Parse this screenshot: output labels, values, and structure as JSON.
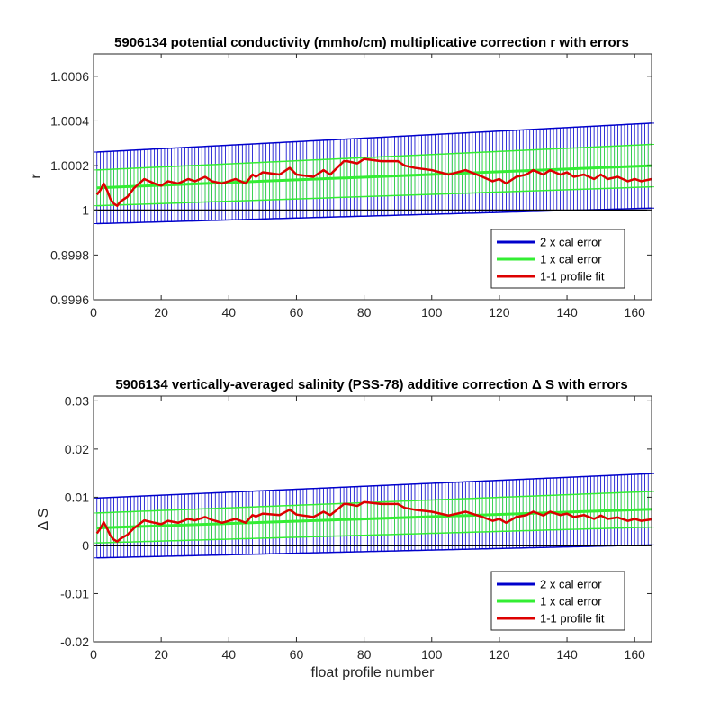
{
  "chart_data": [
    {
      "type": "line",
      "title": "5906134 potential conductivity (mmho/cm) multiplicative correction r with errors",
      "xlabel": "",
      "ylabel": "r",
      "xlim": [
        0,
        165
      ],
      "ylim": [
        0.9996,
        1.0007
      ],
      "xticks": [
        0,
        20,
        40,
        60,
        80,
        100,
        120,
        140,
        160
      ],
      "xtick_labels": [
        "0",
        "20",
        "40",
        "60",
        "80",
        "100",
        "120",
        "140",
        "160"
      ],
      "yticks": [
        0.9996,
        0.9998,
        1,
        1.0002,
        1.0004,
        1.0006
      ],
      "ytick_labels": [
        "0.9996",
        "0.9998",
        "1",
        "1.0002",
        "1.0004",
        "1.0006"
      ],
      "reference_line": 1,
      "fit": {
        "start": 1.0001,
        "end": 1.0002
      },
      "error1": {
        "start": 8e-05,
        "end": 9.5e-05
      },
      "error2": {
        "start": 0.00016,
        "end": 0.00019
      },
      "legend": {
        "placement": "bottom-right",
        "entries": [
          "2 x cal error",
          "1 x cal error",
          "1-1 profile fit"
        ]
      },
      "series": [
        {
          "name": "2 x cal error",
          "color": "#0000cc"
        },
        {
          "name": "1 x cal error",
          "color": "#33ee33"
        },
        {
          "name": "1-1 profile fit",
          "color": "#dd0000",
          "x": [
            1,
            2,
            3,
            4,
            5,
            6,
            7,
            8,
            10,
            12,
            15,
            18,
            20,
            22,
            25,
            28,
            30,
            33,
            35,
            38,
            40,
            42,
            45,
            47,
            48,
            50,
            55,
            58,
            60,
            65,
            68,
            70,
            72,
            74,
            75,
            78,
            80,
            85,
            90,
            92,
            95,
            100,
            105,
            110,
            115,
            118,
            120,
            122,
            125,
            128,
            130,
            133,
            135,
            138,
            140,
            142,
            145,
            148,
            150,
            152,
            155,
            158,
            160,
            162,
            165
          ],
          "values": [
            1.00007,
            1.00009,
            1.00012,
            1.00009,
            1.00005,
            1.00003,
            1.00002,
            1.00004,
            1.00006,
            1.0001,
            1.00014,
            1.00012,
            1.00011,
            1.00013,
            1.00012,
            1.00014,
            1.00013,
            1.00015,
            1.00013,
            1.00012,
            1.00013,
            1.00014,
            1.00012,
            1.00016,
            1.00015,
            1.00017,
            1.00016,
            1.00019,
            1.00016,
            1.00015,
            1.00018,
            1.00016,
            1.00019,
            1.00022,
            1.00022,
            1.00021,
            1.00023,
            1.00022,
            1.00022,
            1.0002,
            1.00019,
            1.00018,
            1.00016,
            1.00018,
            1.00015,
            1.00013,
            1.00014,
            1.00012,
            1.00015,
            1.00016,
            1.00018,
            1.00016,
            1.00018,
            1.00016,
            1.00017,
            1.00015,
            1.00016,
            1.00014,
            1.00016,
            1.00014,
            1.00015,
            1.00013,
            1.00014,
            1.00013,
            1.00014
          ]
        }
      ]
    },
    {
      "type": "line",
      "title": "5906134 vertically-averaged salinity (PSS-78) additive correction Δ S with errors",
      "xlabel": "float profile number",
      "ylabel": "Δ S",
      "xlim": [
        0,
        165
      ],
      "ylim": [
        -0.02,
        0.031
      ],
      "xticks": [
        0,
        20,
        40,
        60,
        80,
        100,
        120,
        140,
        160
      ],
      "xtick_labels": [
        "0",
        "20",
        "40",
        "60",
        "80",
        "100",
        "120",
        "140",
        "160"
      ],
      "yticks": [
        -0.02,
        -0.01,
        0,
        0.01,
        0.02,
        0.03
      ],
      "ytick_labels": [
        "-0.02",
        "-0.01",
        "0",
        "0.01",
        "0.02",
        "0.03"
      ],
      "reference_line": 0,
      "fit": {
        "start": 0.0036,
        "end": 0.0075
      },
      "error1": {
        "start": 0.0031,
        "end": 0.0037
      },
      "error2": {
        "start": 0.0062,
        "end": 0.0074
      },
      "legend": {
        "placement": "bottom-right",
        "entries": [
          "2 x cal error",
          "1 x cal error",
          "1-1 profile fit"
        ]
      },
      "series": [
        {
          "name": "2 x cal error",
          "color": "#0000cc"
        },
        {
          "name": "1 x cal error",
          "color": "#33ee33"
        },
        {
          "name": "1-1 profile fit",
          "color": "#dd0000",
          "x": [
            1,
            2,
            3,
            4,
            5,
            6,
            7,
            8,
            10,
            12,
            15,
            18,
            20,
            22,
            25,
            28,
            30,
            33,
            35,
            38,
            40,
            42,
            45,
            47,
            48,
            50,
            55,
            58,
            60,
            65,
            68,
            70,
            72,
            74,
            75,
            78,
            80,
            85,
            90,
            92,
            95,
            100,
            105,
            110,
            115,
            118,
            120,
            122,
            125,
            128,
            130,
            133,
            135,
            138,
            140,
            142,
            145,
            148,
            150,
            152,
            155,
            158,
            160,
            162,
            165
          ],
          "values": [
            0.0025,
            0.0035,
            0.0048,
            0.0035,
            0.002,
            0.0012,
            0.0008,
            0.0014,
            0.0022,
            0.0036,
            0.0052,
            0.0047,
            0.0044,
            0.0051,
            0.0047,
            0.0055,
            0.0052,
            0.0059,
            0.0053,
            0.0047,
            0.0051,
            0.0055,
            0.0047,
            0.0063,
            0.006,
            0.0066,
            0.0063,
            0.0074,
            0.0064,
            0.0059,
            0.007,
            0.0063,
            0.0074,
            0.0086,
            0.0086,
            0.0082,
            0.009,
            0.0086,
            0.0086,
            0.0078,
            0.0074,
            0.007,
            0.0062,
            0.007,
            0.0059,
            0.0051,
            0.0055,
            0.0047,
            0.0059,
            0.0063,
            0.007,
            0.0062,
            0.007,
            0.0063,
            0.0066,
            0.0059,
            0.0063,
            0.0055,
            0.0062,
            0.0055,
            0.0058,
            0.0051,
            0.0055,
            0.0051,
            0.0054
          ]
        }
      ]
    }
  ]
}
